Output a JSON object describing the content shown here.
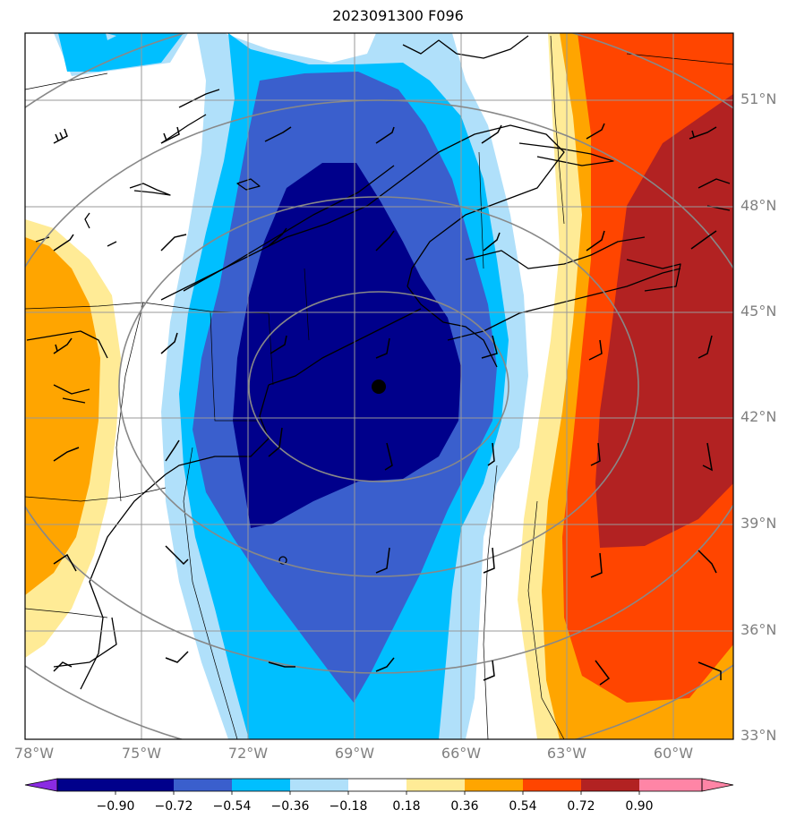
{
  "title": "2023091300 F096",
  "map": {
    "lat_labels": [
      "51°N",
      "48°N",
      "45°N",
      "42°N",
      "39°N",
      "36°N",
      "33°N"
    ],
    "lon_labels": [
      "78°W",
      "75°W",
      "72°W",
      "69°W",
      "66°W",
      "63°W",
      "60°W"
    ]
  },
  "colorbar": {
    "ticks": [
      "−0.90",
      "−0.72",
      "−0.54",
      "−0.36",
      "−0.18",
      "0.18",
      "0.36",
      "0.54",
      "0.72",
      "0.90"
    ],
    "colors": [
      "#8a2be2",
      "#00008b",
      "#3a5fcd",
      "#00bfff",
      "#b0e0fa",
      "#ffffff",
      "#ffeb96",
      "#ffa500",
      "#ff4500",
      "#b22222",
      "#ff85a6"
    ],
    "extend": "both"
  },
  "field_colors": {
    "neg_090": "#00008b",
    "neg_072": "#3a5fcd",
    "neg_054": "#00bfff",
    "neg_036": "#b0e0fa",
    "pos_018": "#ffeb96",
    "pos_036": "#ffa500",
    "pos_054": "#ff4500",
    "pos_072": "#b22222"
  }
}
